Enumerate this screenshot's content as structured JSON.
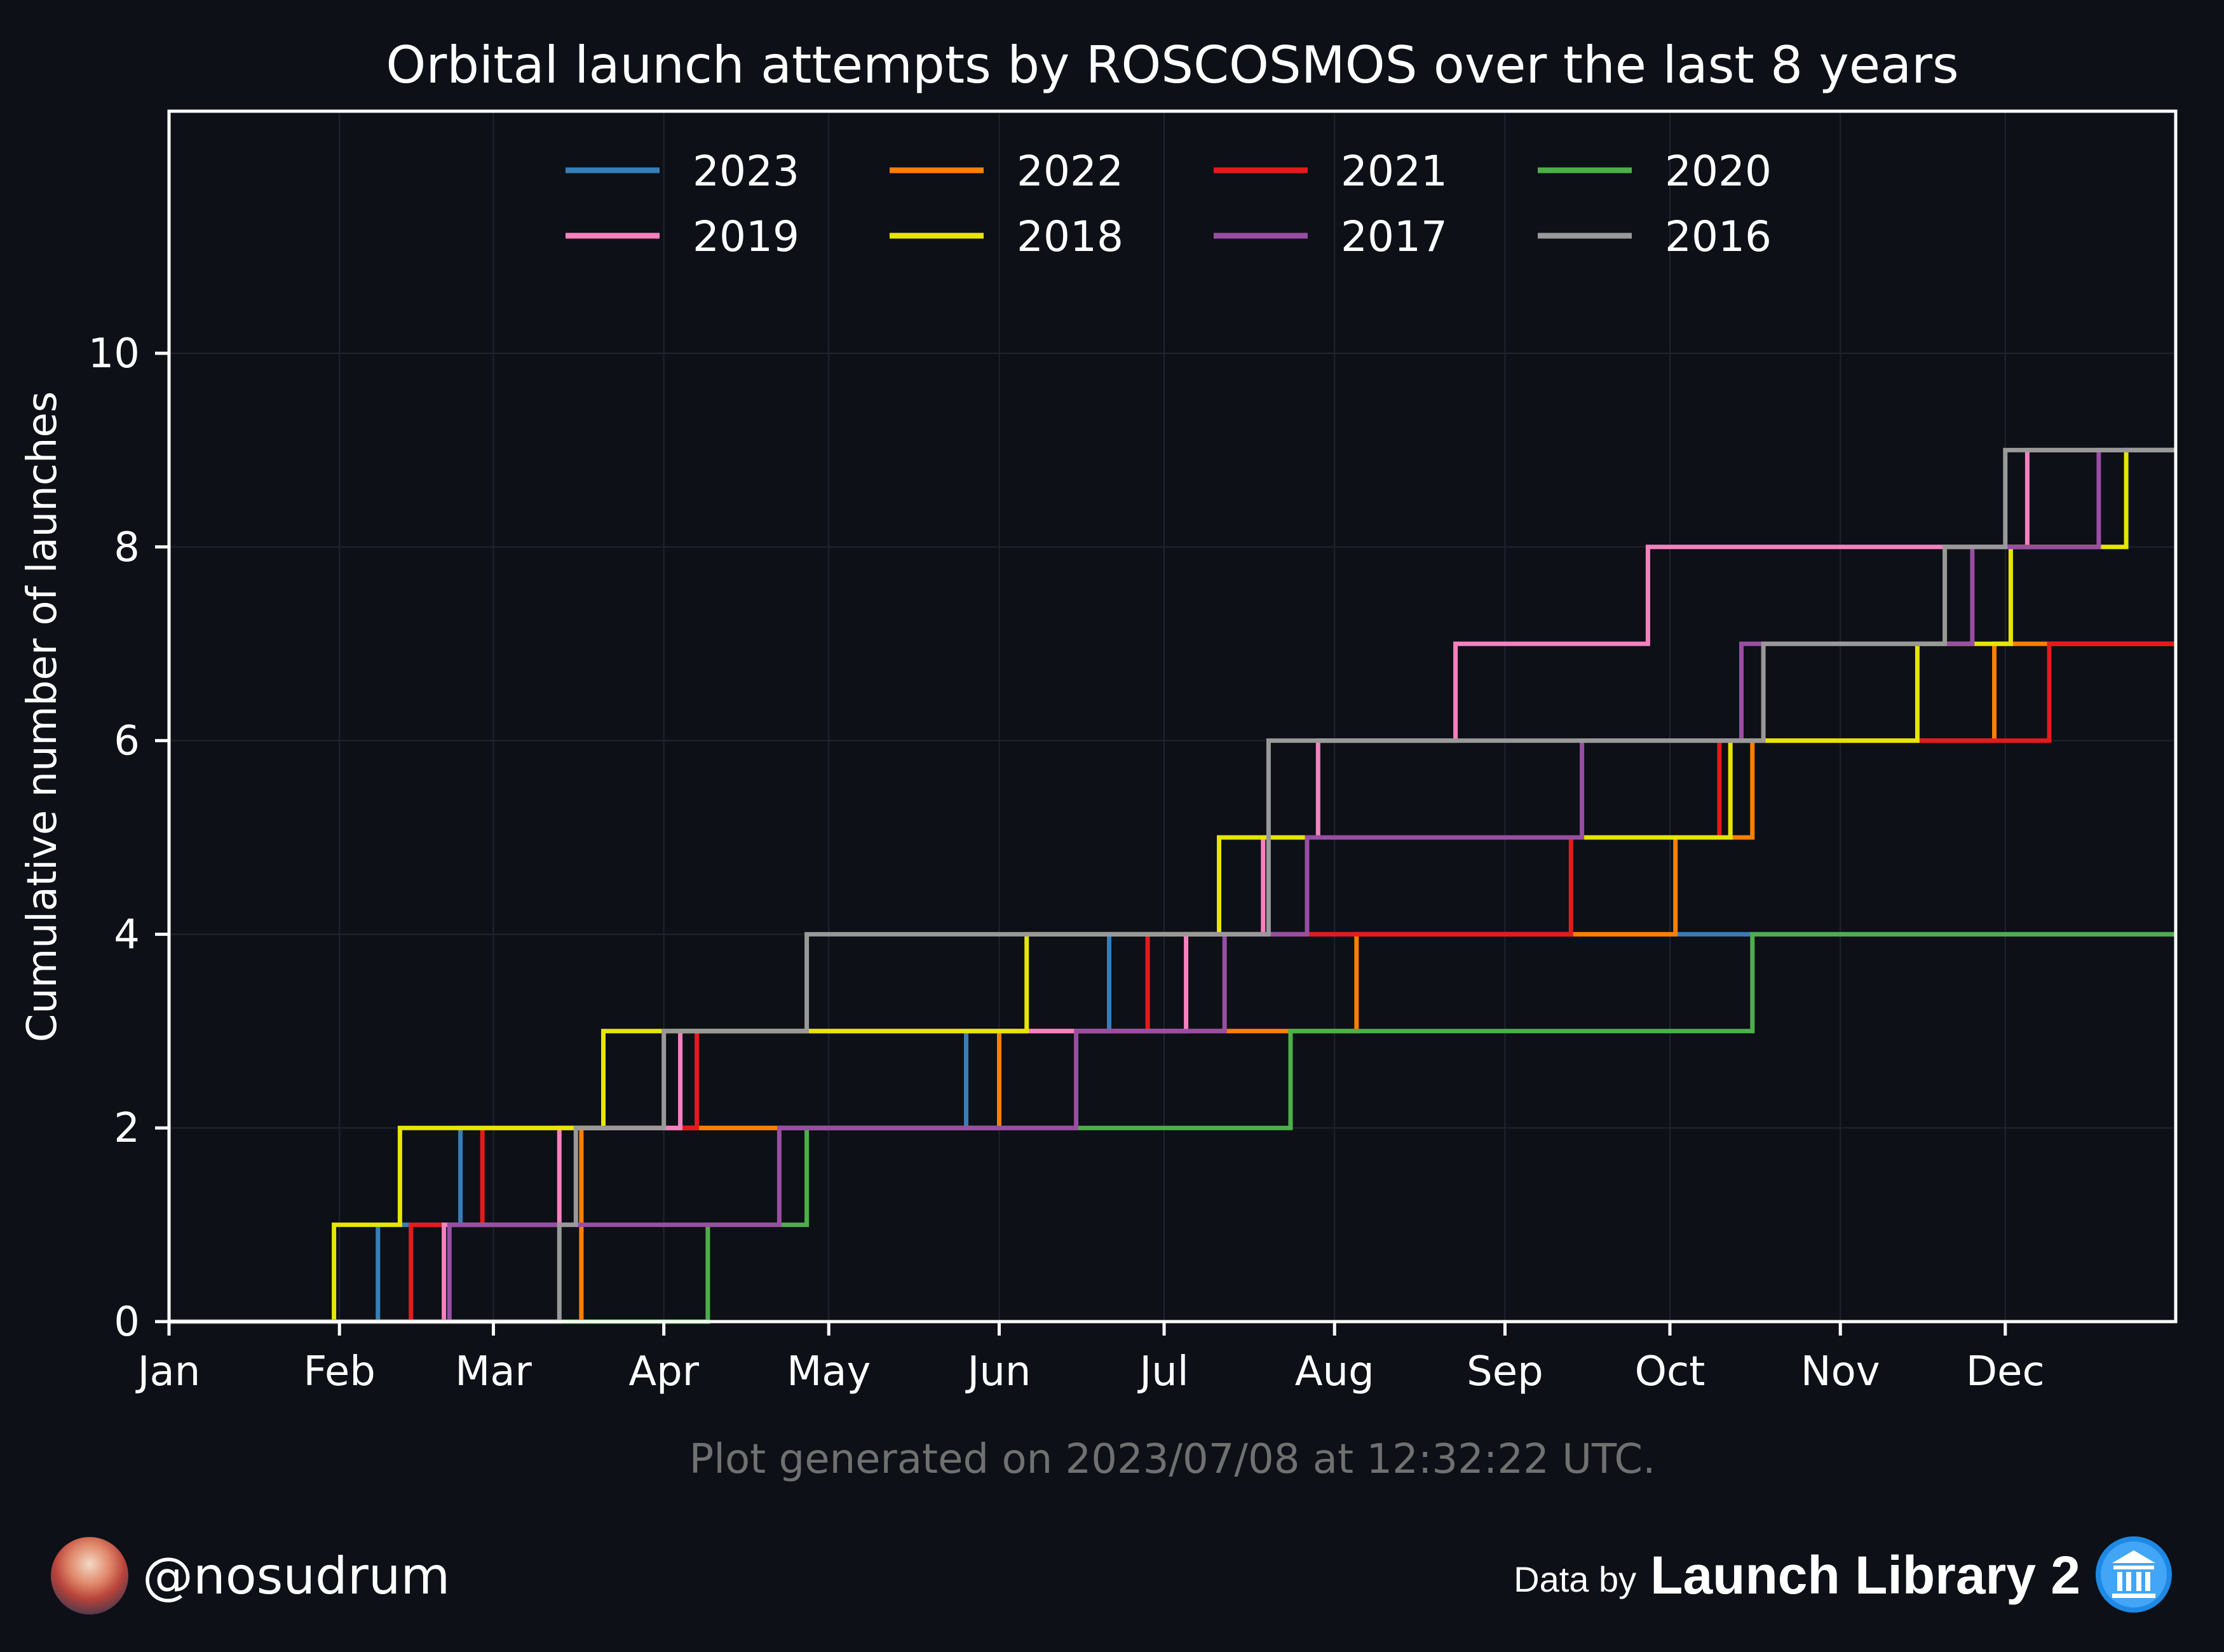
{
  "chart_data": {
    "type": "line",
    "step": "post",
    "title": "Orbital launch attempts by ROSCOSMOS over the last 8 years",
    "xlabel": "",
    "ylabel": "Cumulative number of launches",
    "x_unit": "day of year",
    "xlim": [
      1,
      366
    ],
    "ylim": [
      0,
      12.5
    ],
    "x_tick_labels": [
      "Jan",
      "Feb",
      "Mar",
      "Apr",
      "May",
      "Jun",
      "Jul",
      "Aug",
      "Sep",
      "Oct",
      "Nov",
      "Dec"
    ],
    "x_tick_days": [
      1,
      32,
      60,
      91,
      121,
      152,
      182,
      213,
      244,
      274,
      305,
      335
    ],
    "y_ticks": [
      0,
      2,
      4,
      6,
      8,
      10
    ],
    "grid": true,
    "legend_position": "top-center",
    "series": [
      {
        "name": "2023",
        "color": "#377eb8",
        "x": [
          39,
          54,
          146,
          172
        ],
        "y": [
          1,
          2,
          3,
          4
        ]
      },
      {
        "name": "2022",
        "color": "#ff7f00",
        "x": [
          76,
          152,
          217,
          275,
          289,
          333
        ],
        "y": [
          2,
          3,
          4,
          5,
          6,
          7
        ]
      },
      {
        "name": "2021",
        "color": "#e41a1c",
        "x": [
          45,
          58,
          97,
          179,
          256,
          283,
          343
        ],
        "y": [
          1,
          2,
          3,
          4,
          5,
          6,
          7
        ]
      },
      {
        "name": "2020",
        "color": "#4daf4a",
        "x": [
          99,
          117,
          205,
          289
        ],
        "y": [
          1,
          2,
          3,
          4
        ]
      },
      {
        "name": "2019",
        "color": "#f781bf",
        "x": [
          51,
          72,
          94,
          186,
          200,
          210,
          235,
          270,
          339
        ],
        "y": [
          1,
          2,
          3,
          4,
          5,
          6,
          7,
          8,
          9
        ]
      },
      {
        "name": "2018",
        "color": "#e6e600",
        "x": [
          31,
          43,
          80,
          157,
          192,
          285,
          319,
          336,
          357
        ],
        "y": [
          1,
          2,
          3,
          4,
          5,
          6,
          7,
          8,
          9
        ]
      },
      {
        "name": "2017",
        "color": "#984ea3",
        "x": [
          52,
          112,
          166,
          193,
          208,
          258,
          287,
          329,
          352
        ],
        "y": [
          1,
          2,
          3,
          4,
          5,
          6,
          7,
          8,
          9
        ]
      },
      {
        "name": "2016",
        "color": "#999999",
        "x": [
          72,
          75,
          91,
          117,
          201,
          291,
          324,
          335
        ],
        "y": [
          1,
          2,
          3,
          4,
          6,
          7,
          8,
          9
        ]
      }
    ]
  },
  "footnote": "Plot generated on 2023/07/08 at 12:32:22 UTC.",
  "author": {
    "handle": "@nosudrum"
  },
  "credit": {
    "prefix": "Data by",
    "source": "Launch Library 2"
  }
}
